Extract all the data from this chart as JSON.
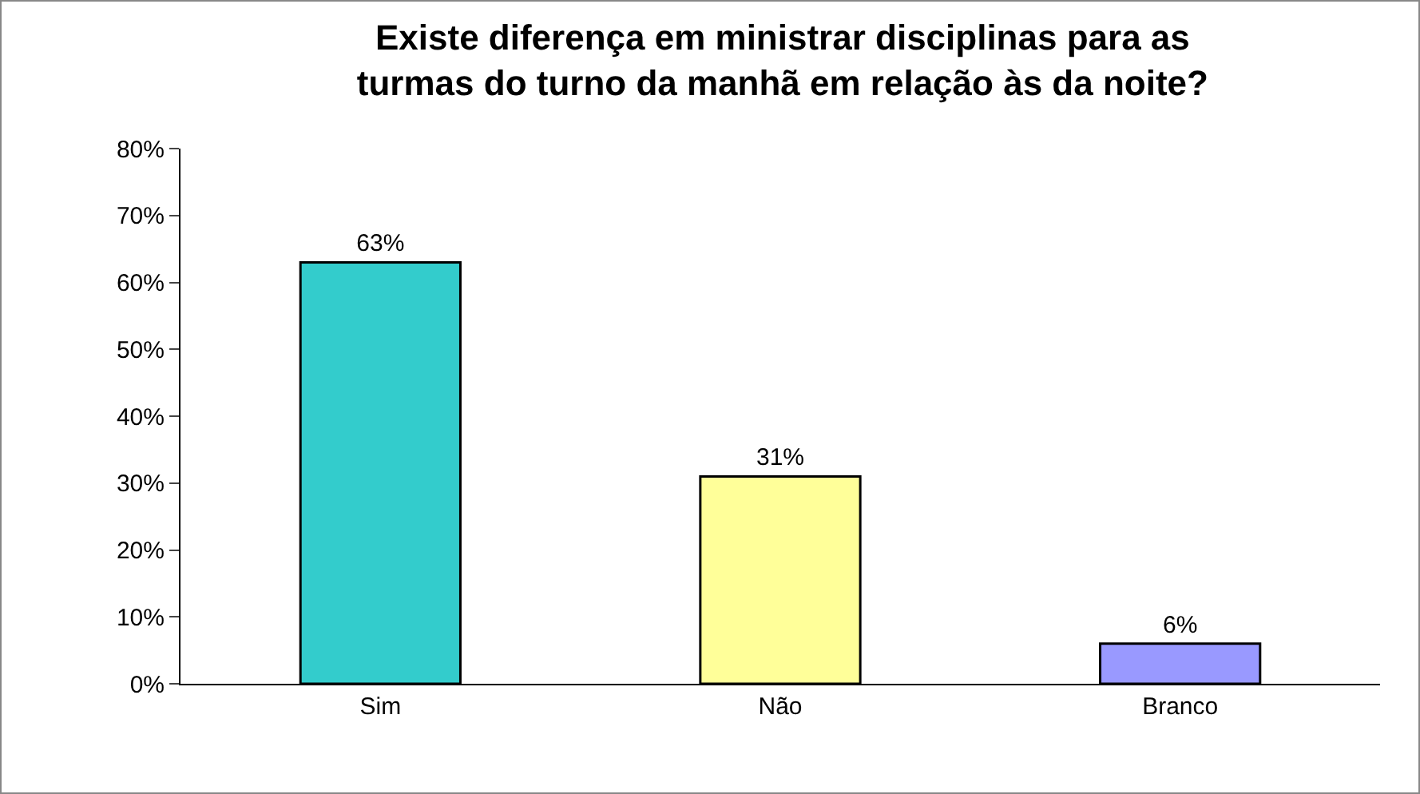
{
  "chart_data": {
    "type": "bar",
    "title": "Existe diferença em ministrar disciplinas para as turmas do turno da manhã em relação às da noite?",
    "categories": [
      "Sim",
      "Não",
      "Branco"
    ],
    "values": [
      63,
      31,
      6
    ],
    "colors": [
      "#33cccc",
      "#ffff99",
      "#9999ff"
    ],
    "value_labels": [
      "63%",
      "31%",
      "6%"
    ],
    "ylim": [
      0,
      80
    ],
    "yticks": [
      {
        "value": 0,
        "label": "0%"
      },
      {
        "value": 10,
        "label": "10%"
      },
      {
        "value": 20,
        "label": "20%"
      },
      {
        "value": 30,
        "label": "30%"
      },
      {
        "value": 40,
        "label": "40%"
      },
      {
        "value": 50,
        "label": "50%"
      },
      {
        "value": 60,
        "label": "60%"
      },
      {
        "value": 70,
        "label": "70%"
      },
      {
        "value": 80,
        "label": "80%"
      }
    ],
    "grid": false
  }
}
